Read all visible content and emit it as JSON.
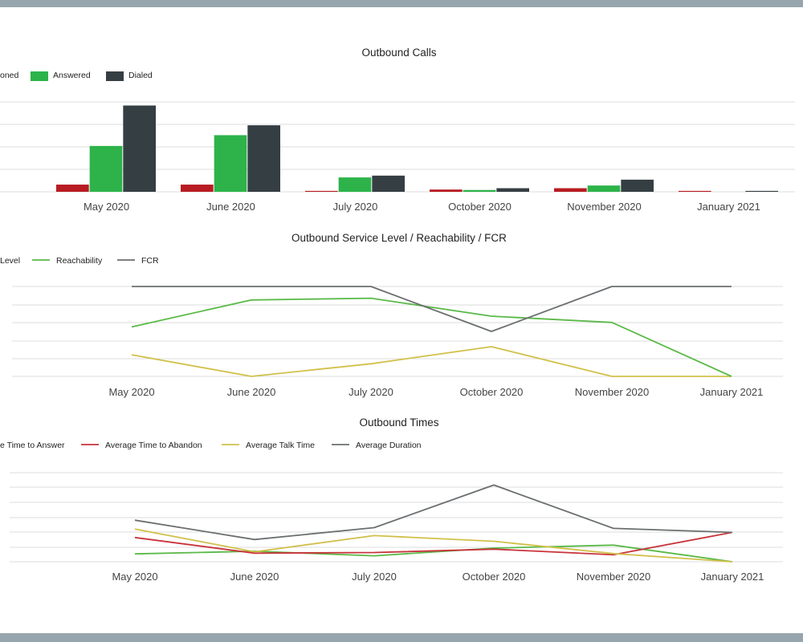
{
  "chart_data": [
    {
      "type": "bar",
      "title": "Outbound Calls",
      "categories": [
        "May 2020",
        "June 2020",
        "July 2020",
        "October 2020",
        "November 2020",
        "January 2021"
      ],
      "legend": [
        "oned",
        "Answered",
        "Dialed"
      ],
      "series": [
        {
          "name": "Abandoned",
          "color": "#b81c22",
          "values": [
            1.6,
            1.6,
            0.2,
            0.5,
            0.8,
            0.2
          ]
        },
        {
          "name": "Answered",
          "color": "#2db34a",
          "values": [
            10.2,
            12.6,
            3.2,
            0.4,
            1.4,
            0
          ]
        },
        {
          "name": "Dialed",
          "color": "#353f43",
          "values": [
            19.2,
            14.8,
            3.6,
            0.8,
            2.7,
            0.2
          ]
        }
      ],
      "ylim": [
        0,
        20
      ],
      "grid": true,
      "legend_position": "top-left"
    },
    {
      "type": "line",
      "title": "Outbound Service Level / Reachability / FCR",
      "categories": [
        "May 2020",
        "June 2020",
        "July 2020",
        "October 2020",
        "November 2020",
        "January 2021"
      ],
      "legend": [
        "Level",
        "Reachability",
        "FCR"
      ],
      "series": [
        {
          "name": "Service Level",
          "color": "#d1c04a",
          "values": [
            0.24,
            0,
            0.14,
            0.33,
            0,
            0
          ]
        },
        {
          "name": "Reachability",
          "color": "#5ab947",
          "values": [
            0.55,
            0.85,
            0.87,
            0.67,
            0.6,
            0
          ]
        },
        {
          "name": "FCR",
          "color": "#6b6f71",
          "values": [
            1,
            1,
            1,
            0.5,
            1,
            1
          ]
        }
      ],
      "ylim": [
        0,
        1
      ],
      "grid": true,
      "legend_position": "top-left"
    },
    {
      "type": "line",
      "title": "Outbound Times",
      "categories": [
        "May 2020",
        "June 2020",
        "July 2020",
        "October 2020",
        "November 2020",
        "January 2021"
      ],
      "legend": [
        "e Time to Answer",
        "Average Time to Abandon",
        "Average Talk Time",
        "Average Duration"
      ],
      "series": [
        {
          "name": "Average Time to Answer",
          "color": "#5ab947",
          "values": [
            0.53,
            0.71,
            0.4,
            0.92,
            1.12,
            0
          ]
        },
        {
          "name": "Average Time to Abandon",
          "color": "#c8333a",
          "values": [
            1.63,
            0.58,
            0.62,
            0.85,
            0.47,
            1.98
          ]
        },
        {
          "name": "Average Talk Time",
          "color": "#d1c04a",
          "values": [
            2.2,
            0.67,
            1.76,
            1.38,
            0.55,
            0
          ]
        },
        {
          "name": "Average Duration",
          "color": "#6b6f71",
          "values": [
            2.8,
            1.5,
            2.3,
            5.17,
            2.25,
            1.98
          ]
        }
      ],
      "ylim": [
        0,
        6
      ],
      "grid": true,
      "legend_position": "top-left"
    }
  ]
}
